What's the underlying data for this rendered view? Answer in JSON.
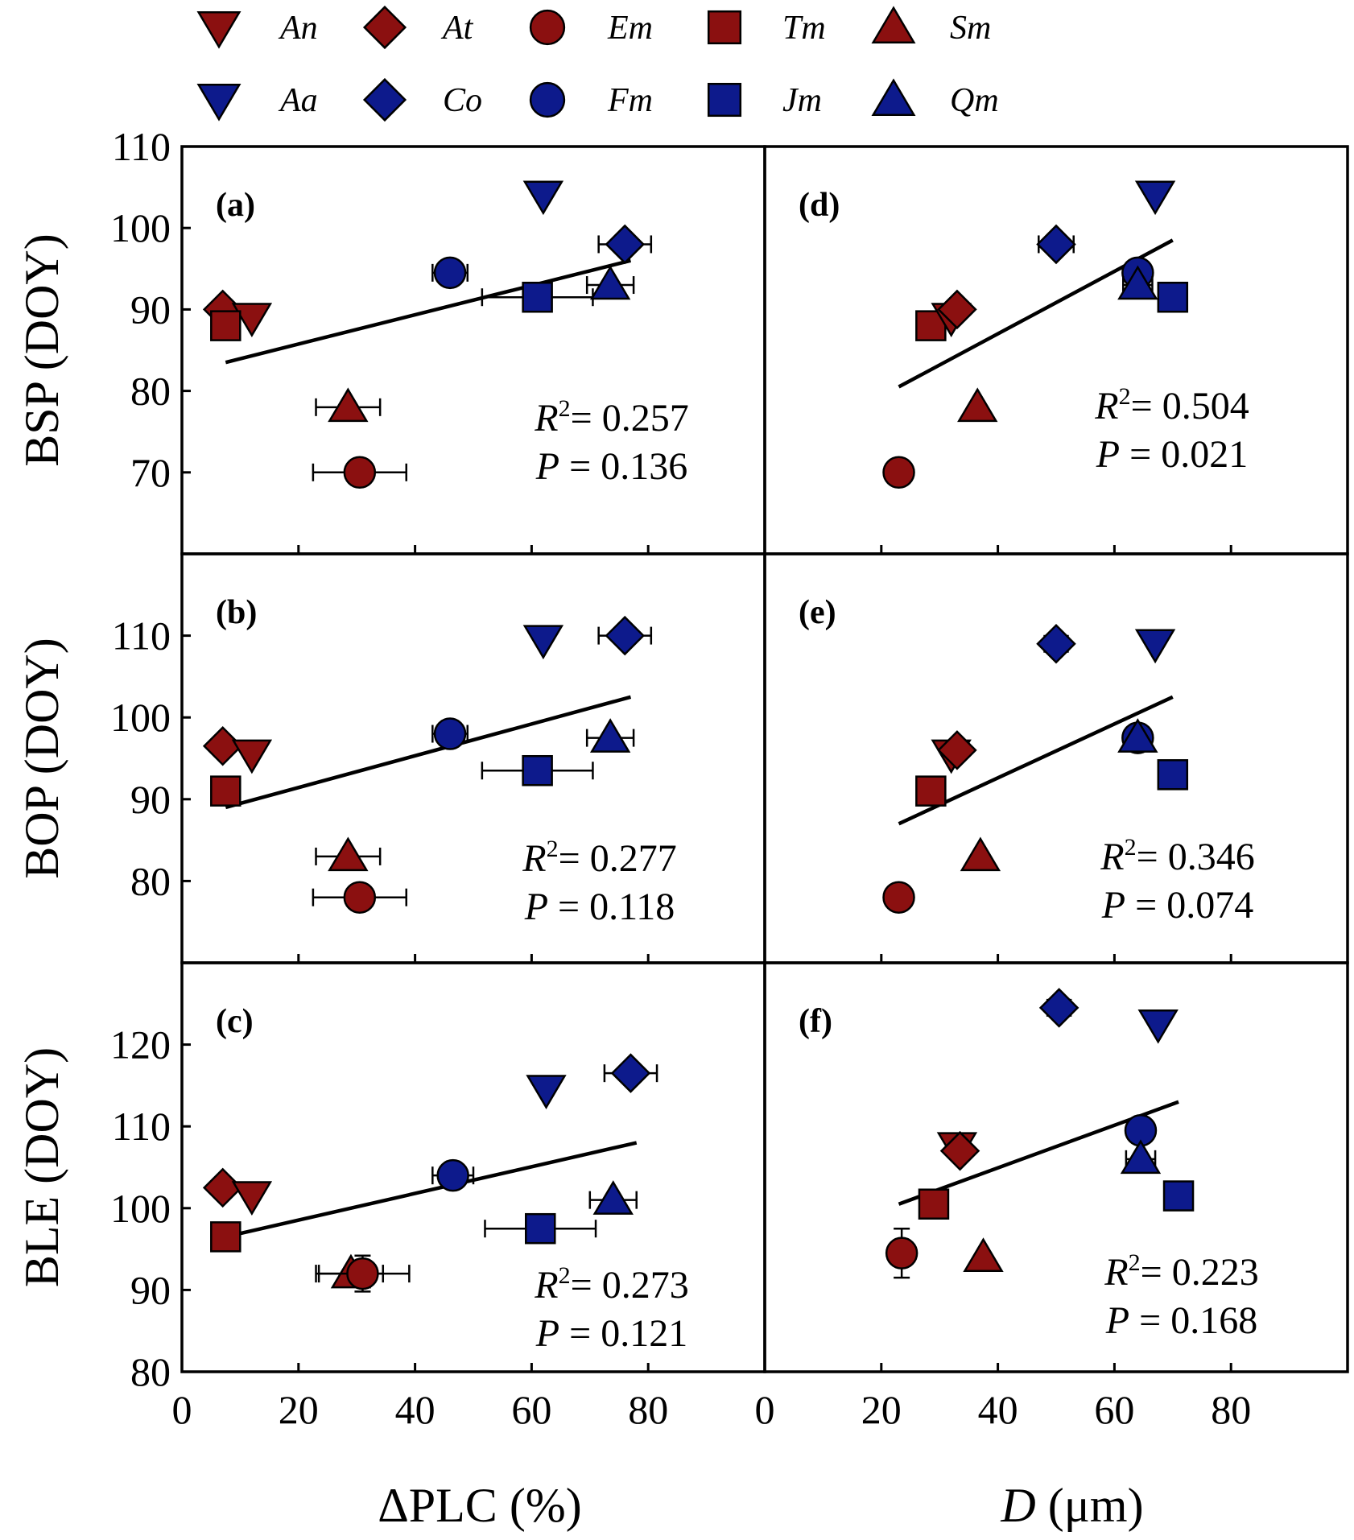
{
  "legend": {
    "rows": [
      [
        {
          "label": "An",
          "marker": "triangle-down",
          "color": "#8b1010"
        },
        {
          "label": "At",
          "marker": "diamond",
          "color": "#8b1010"
        },
        {
          "label": "Em",
          "marker": "circle",
          "color": "#8b1010"
        },
        {
          "label": "Tm",
          "marker": "square",
          "color": "#8b1010"
        },
        {
          "label": "Sm",
          "marker": "triangle-up",
          "color": "#8b1010"
        }
      ],
      [
        {
          "label": "Aa",
          "marker": "triangle-down",
          "color": "#0d1a8c"
        },
        {
          "label": "Co",
          "marker": "diamond",
          "color": "#0d1a8c"
        },
        {
          "label": "Fm",
          "marker": "circle",
          "color": "#0d1a8c"
        },
        {
          "label": "Jm",
          "marker": "square",
          "color": "#0d1a8c"
        },
        {
          "label": "Qm",
          "marker": "triangle-up",
          "color": "#0d1a8c"
        }
      ]
    ]
  },
  "chart_data": [
    {
      "type": "scatter",
      "panel": "(a)",
      "xlabel_var": "ΔPLC",
      "xlabel_unit": "(%)",
      "ylabel": "BSP (DOY)",
      "xlim": [
        0,
        100
      ],
      "ylim": [
        60,
        110
      ],
      "xticks": [
        0,
        20,
        40,
        60,
        80
      ],
      "yticks": [
        70,
        80,
        90,
        100,
        110
      ],
      "r2_value": "= 0.257",
      "p_value": "= 0.136",
      "fit": {
        "x": [
          7.5,
          77
        ],
        "y": [
          83.5,
          96
        ]
      },
      "points": [
        {
          "species": "At",
          "x": 7,
          "y": 90,
          "xerr": 0
        },
        {
          "species": "An",
          "x": 12,
          "y": 89,
          "xerr": 0
        },
        {
          "species": "Tm",
          "x": 7.5,
          "y": 88,
          "xerr": 0
        },
        {
          "species": "Sm",
          "x": 28.5,
          "y": 78,
          "xerr": 5.5
        },
        {
          "species": "Em",
          "x": 30.5,
          "y": 70,
          "xerr": 8
        },
        {
          "species": "Fm",
          "x": 46,
          "y": 94.5,
          "xerr": 3
        },
        {
          "species": "Jm",
          "x": 61,
          "y": 91.5,
          "xerr": 9.5
        },
        {
          "species": "Aa",
          "x": 62,
          "y": 104,
          "xerr": 0
        },
        {
          "species": "Co",
          "x": 76,
          "y": 98,
          "xerr": 4.5
        },
        {
          "species": "Qm",
          "x": 73.5,
          "y": 93,
          "xerr": 4
        }
      ]
    },
    {
      "type": "scatter",
      "panel": "(b)",
      "xlabel_var": "ΔPLC",
      "xlabel_unit": "(%)",
      "ylabel": "BOP (DOY)",
      "xlim": [
        0,
        100
      ],
      "ylim": [
        70,
        120
      ],
      "xticks": [
        0,
        20,
        40,
        60,
        80
      ],
      "yticks": [
        80,
        90,
        100,
        110
      ],
      "r2_value": "= 0.277",
      "p_value": "= 0.118",
      "fit": {
        "x": [
          7.5,
          77
        ],
        "y": [
          89,
          102.5
        ]
      },
      "points": [
        {
          "species": "At",
          "x": 7,
          "y": 96.5,
          "xerr": 0
        },
        {
          "species": "An",
          "x": 12,
          "y": 95.5,
          "xerr": 0
        },
        {
          "species": "Tm",
          "x": 7.5,
          "y": 91,
          "xerr": 0
        },
        {
          "species": "Sm",
          "x": 28.5,
          "y": 83,
          "xerr": 5.5
        },
        {
          "species": "Em",
          "x": 30.5,
          "y": 78,
          "xerr": 8
        },
        {
          "species": "Fm",
          "x": 46,
          "y": 98,
          "xerr": 3
        },
        {
          "species": "Jm",
          "x": 61,
          "y": 93.5,
          "xerr": 9.5
        },
        {
          "species": "Aa",
          "x": 62,
          "y": 109.5,
          "xerr": 0
        },
        {
          "species": "Co",
          "x": 76,
          "y": 110,
          "xerr": 4.5
        },
        {
          "species": "Qm",
          "x": 73.5,
          "y": 97.5,
          "xerr": 4
        }
      ]
    },
    {
      "type": "scatter",
      "panel": "(c)",
      "xlabel_var": "ΔPLC",
      "xlabel_unit": "(%)",
      "ylabel": "BLE (DOY)",
      "xlim": [
        0,
        100
      ],
      "ylim": [
        80,
        130
      ],
      "xticks": [
        0,
        20,
        40,
        60,
        80
      ],
      "yticks": [
        80,
        90,
        100,
        110,
        120
      ],
      "r2_value": "= 0.273",
      "p_value": "= 0.121",
      "fit": {
        "x": [
          7.5,
          78
        ],
        "y": [
          96.5,
          108
        ]
      },
      "points": [
        {
          "species": "At",
          "x": 7,
          "y": 102.5,
          "xerr": 0
        },
        {
          "species": "An",
          "x": 12,
          "y": 101.5,
          "xerr": 0
        },
        {
          "species": "Tm",
          "x": 7.5,
          "y": 96.5,
          "xerr": 1.5
        },
        {
          "species": "Sm",
          "x": 29,
          "y": 92,
          "xerr": 5.5
        },
        {
          "species": "Em",
          "x": 31,
          "y": 92,
          "xerr": 8,
          "yerr": 2.2
        },
        {
          "species": "Fm",
          "x": 46.5,
          "y": 104,
          "xerr": 3.5
        },
        {
          "species": "Jm",
          "x": 61.5,
          "y": 97.5,
          "xerr": 9.5
        },
        {
          "species": "Aa",
          "x": 62.5,
          "y": 114.5,
          "xerr": 0
        },
        {
          "species": "Co",
          "x": 77,
          "y": 116.5,
          "xerr": 4.5
        },
        {
          "species": "Qm",
          "x": 74,
          "y": 101,
          "xerr": 4
        }
      ]
    },
    {
      "type": "scatter",
      "panel": "(d)",
      "xlabel_var": "D",
      "xlabel_unit": "(μm)",
      "ylabel": "BSP (DOY)",
      "xlim": [
        0,
        100
      ],
      "ylim": [
        60,
        110
      ],
      "xticks": [
        0,
        20,
        40,
        60,
        80
      ],
      "yticks": [],
      "r2_value": "= 0.504",
      "p_value": "= 0.021",
      "fit": {
        "x": [
          23,
          70
        ],
        "y": [
          80.5,
          98.5
        ]
      },
      "points": [
        {
          "species": "Em",
          "x": 23,
          "y": 70,
          "xerr": 0
        },
        {
          "species": "Tm",
          "x": 28.5,
          "y": 88,
          "xerr": 0
        },
        {
          "species": "An",
          "x": 32,
          "y": 89,
          "xerr": 0
        },
        {
          "species": "At",
          "x": 33,
          "y": 90,
          "xerr": 0
        },
        {
          "species": "Sm",
          "x": 36.5,
          "y": 78,
          "xerr": 0
        },
        {
          "species": "Co",
          "x": 50,
          "y": 98,
          "xerr": 3
        },
        {
          "species": "Fm",
          "x": 64,
          "y": 94.5,
          "xerr": 0
        },
        {
          "species": "Qm",
          "x": 64,
          "y": 93,
          "xerr": 2.5
        },
        {
          "species": "Aa",
          "x": 67,
          "y": 104,
          "xerr": 0
        },
        {
          "species": "Jm",
          "x": 70,
          "y": 91.5,
          "xerr": 0
        }
      ]
    },
    {
      "type": "scatter",
      "panel": "(e)",
      "xlabel_var": "D",
      "xlabel_unit": "(μm)",
      "ylabel": "BOP (DOY)",
      "xlim": [
        0,
        100
      ],
      "ylim": [
        70,
        120
      ],
      "xticks": [
        0,
        20,
        40,
        60,
        80
      ],
      "yticks": [],
      "r2_value": "= 0.346",
      "p_value": "= 0.074",
      "fit": {
        "x": [
          23,
          70
        ],
        "y": [
          87,
          102.5
        ]
      },
      "points": [
        {
          "species": "Em",
          "x": 23,
          "y": 78,
          "xerr": 0
        },
        {
          "species": "Tm",
          "x": 28.5,
          "y": 91,
          "xerr": 0
        },
        {
          "species": "An",
          "x": 32,
          "y": 95.5,
          "xerr": 0
        },
        {
          "species": "At",
          "x": 33,
          "y": 96,
          "xerr": 0
        },
        {
          "species": "Sm",
          "x": 37,
          "y": 83,
          "xerr": 0
        },
        {
          "species": "Co",
          "x": 50,
          "y": 109,
          "xerr": 2
        },
        {
          "species": "Fm",
          "x": 64,
          "y": 97.5,
          "xerr": 0
        },
        {
          "species": "Qm",
          "x": 64,
          "y": 97.5,
          "xerr": 0
        },
        {
          "species": "Aa",
          "x": 67,
          "y": 109,
          "xerr": 0
        },
        {
          "species": "Jm",
          "x": 70,
          "y": 93,
          "xerr": 0
        }
      ]
    },
    {
      "type": "scatter",
      "panel": "(f)",
      "xlabel_var": "D",
      "xlabel_unit": "(μm)",
      "ylabel": "BLE (DOY)",
      "xlim": [
        0,
        100
      ],
      "ylim": [
        80,
        130
      ],
      "xticks": [
        0,
        20,
        40,
        60,
        80
      ],
      "yticks": [],
      "r2_value": "= 0.223",
      "p_value": "= 0.168",
      "fit": {
        "x": [
          23,
          71
        ],
        "y": [
          100.5,
          113
        ]
      },
      "points": [
        {
          "species": "Em",
          "x": 23.5,
          "y": 94.5,
          "xerr": 0,
          "yerr": 3
        },
        {
          "species": "Tm",
          "x": 29,
          "y": 100.5,
          "xerr": 0
        },
        {
          "species": "An",
          "x": 33,
          "y": 107.5,
          "xerr": 0
        },
        {
          "species": "At",
          "x": 33.5,
          "y": 107,
          "xerr": 0
        },
        {
          "species": "Sm",
          "x": 37.5,
          "y": 94,
          "xerr": 0
        },
        {
          "species": "Co",
          "x": 50.5,
          "y": 124.5,
          "xerr": 2
        },
        {
          "species": "Fm",
          "x": 64.5,
          "y": 109.5,
          "xerr": 0
        },
        {
          "species": "Qm",
          "x": 64.5,
          "y": 106,
          "xerr": 2.5
        },
        {
          "species": "Aa",
          "x": 67.5,
          "y": 122.5,
          "xerr": 0
        },
        {
          "species": "Jm",
          "x": 71,
          "y": 101.5,
          "xerr": 0
        }
      ]
    }
  ]
}
